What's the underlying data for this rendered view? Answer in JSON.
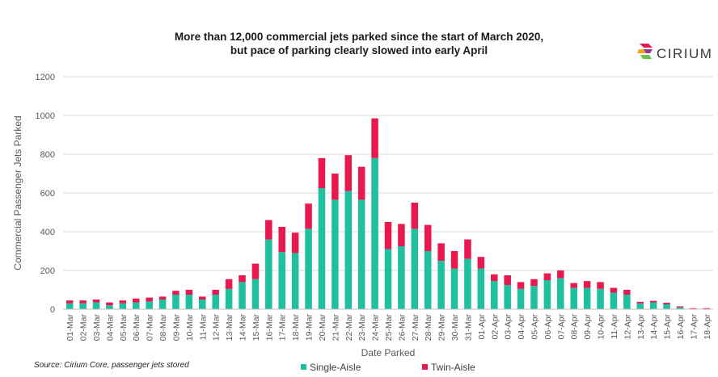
{
  "title_line1": "More than 12,000 commercial jets parked since the start of March 2020,",
  "title_line2": "but pace of parking clearly slowed into early April",
  "logo": {
    "text": "CIRIUM",
    "icon": "cirium-logo-icon"
  },
  "source": "Source: Cirium Core, passenger jets stored",
  "colors": {
    "single": "#1fbf9f",
    "twin": "#e8194f",
    "grid": "#d9d9d9",
    "axis_text": "#595959"
  },
  "chart_data": {
    "type": "bar",
    "stacked": true,
    "xlabel": "Date Parked",
    "ylabel": "Commercial Passenger Jets Parked",
    "ylim": [
      0,
      1200
    ],
    "yticks": [
      0,
      200,
      400,
      600,
      800,
      1000,
      1200
    ],
    "grid": true,
    "legend_position": "bottom",
    "categories": [
      "01-Mar",
      "02-Mar",
      "03-Mar",
      "04-Mar",
      "05-Mar",
      "06-Mar",
      "07-Mar",
      "08-Mar",
      "09-Mar",
      "10-Mar",
      "11-Mar",
      "12-Mar",
      "13-Mar",
      "14-Mar",
      "15-Mar",
      "16-Mar",
      "17-Mar",
      "18-Mar",
      "19-Mar",
      "20-Mar",
      "21-Mar",
      "22-Mar",
      "23-Mar",
      "24-Mar",
      "25-Mar",
      "26-Mar",
      "27-Mar",
      "28-Mar",
      "29-Mar",
      "30-Mar",
      "31-Mar",
      "01-Apr",
      "02-Apr",
      "03-Apr",
      "04-Apr",
      "05-Apr",
      "06-Apr",
      "07-Apr",
      "08-Apr",
      "09-Apr",
      "10-Apr",
      "11-Apr",
      "12-Apr",
      "13-Apr",
      "14-Apr",
      "15-Apr",
      "16-Apr",
      "17-Apr",
      "18-Apr"
    ],
    "series": [
      {
        "name": "Single-Aisle",
        "values": [
          30,
          30,
          35,
          20,
          30,
          35,
          40,
          50,
          75,
          75,
          50,
          75,
          105,
          140,
          155,
          360,
          295,
          290,
          415,
          625,
          565,
          610,
          565,
          780,
          310,
          325,
          415,
          300,
          250,
          210,
          260,
          210,
          145,
          125,
          105,
          120,
          150,
          160,
          110,
          110,
          105,
          85,
          75,
          30,
          35,
          25,
          10,
          0,
          0
        ]
      },
      {
        "name": "Twin-Aisle",
        "values": [
          15,
          15,
          15,
          15,
          15,
          20,
          20,
          15,
          20,
          25,
          15,
          25,
          50,
          35,
          80,
          100,
          130,
          105,
          130,
          155,
          135,
          185,
          170,
          205,
          140,
          115,
          135,
          135,
          90,
          90,
          100,
          60,
          35,
          50,
          35,
          35,
          35,
          40,
          25,
          35,
          35,
          25,
          25,
          8,
          8,
          8,
          5,
          5,
          5
        ]
      }
    ]
  }
}
